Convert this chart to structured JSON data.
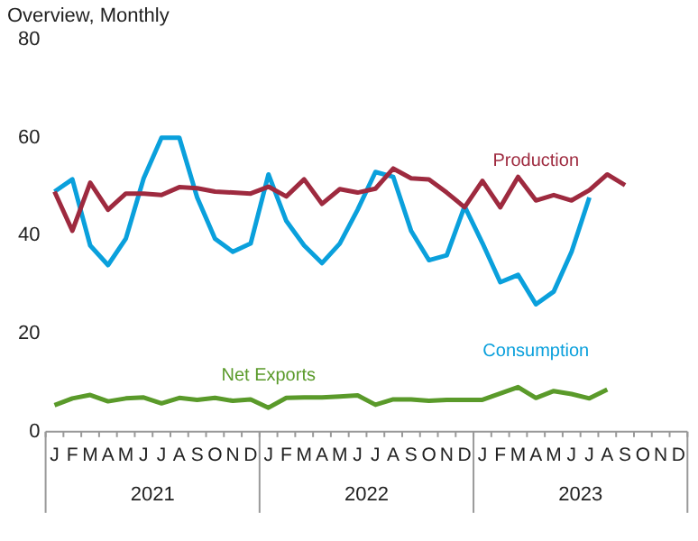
{
  "chart_data": {
    "type": "line",
    "title": "Overview, Monthly",
    "categories": [
      "J",
      "F",
      "M",
      "A",
      "M",
      "J",
      "J",
      "A",
      "S",
      "O",
      "N",
      "D",
      "J",
      "F",
      "M",
      "A",
      "M",
      "J",
      "J",
      "A",
      "S",
      "O",
      "N",
      "D",
      "J",
      "F",
      "M",
      "A",
      "M",
      "J",
      "J",
      "A",
      "S",
      "O",
      "N",
      "D"
    ],
    "series": [
      {
        "name": "Production",
        "color": "#9e2a3f",
        "values": [
          49,
          41,
          50.8,
          45.3,
          48.6,
          48.6,
          48.3,
          49.9,
          49.7,
          49,
          48.8,
          48.6,
          50,
          48,
          51.5,
          46.5,
          49.5,
          48.8,
          49.6,
          53.7,
          51.7,
          51.5,
          48.8,
          45.8,
          51.2,
          45.8,
          52,
          47.2,
          48.3,
          47.2,
          49.3,
          52.5,
          50.3,
          null,
          null,
          null
        ]
      },
      {
        "name": "Consumption",
        "color": "#0aa0dc",
        "values": [
          49,
          51.5,
          38,
          34,
          39.4,
          51.7,
          60,
          60,
          47.8,
          39.4,
          36.7,
          38.4,
          52.5,
          43,
          38,
          34.4,
          38.4,
          45.3,
          53,
          52,
          41,
          35,
          36,
          46,
          38.5,
          30.5,
          32,
          26,
          28.6,
          36.7,
          47.8,
          null,
          null,
          null,
          null,
          null
        ]
      },
      {
        "name": "Net Exports",
        "color": "#5a9a2a",
        "values": [
          5.4,
          6.8,
          7.5,
          6.2,
          6.8,
          7,
          5.8,
          6.9,
          6.5,
          6.9,
          6.3,
          6.6,
          4.9,
          6.9,
          7,
          7,
          7.2,
          7.4,
          5.5,
          6.6,
          6.6,
          6.3,
          6.5,
          6.5,
          6.5,
          7.8,
          9.1,
          6.9,
          8.3,
          7.7,
          6.8,
          8.6,
          null,
          null,
          null,
          null
        ]
      }
    ],
    "ylim": [
      0,
      80
    ],
    "yticks": [
      0,
      20,
      40,
      60,
      80
    ],
    "grid": false,
    "legend": false,
    "annotations": [
      "2021",
      "2022",
      "2023"
    ]
  }
}
